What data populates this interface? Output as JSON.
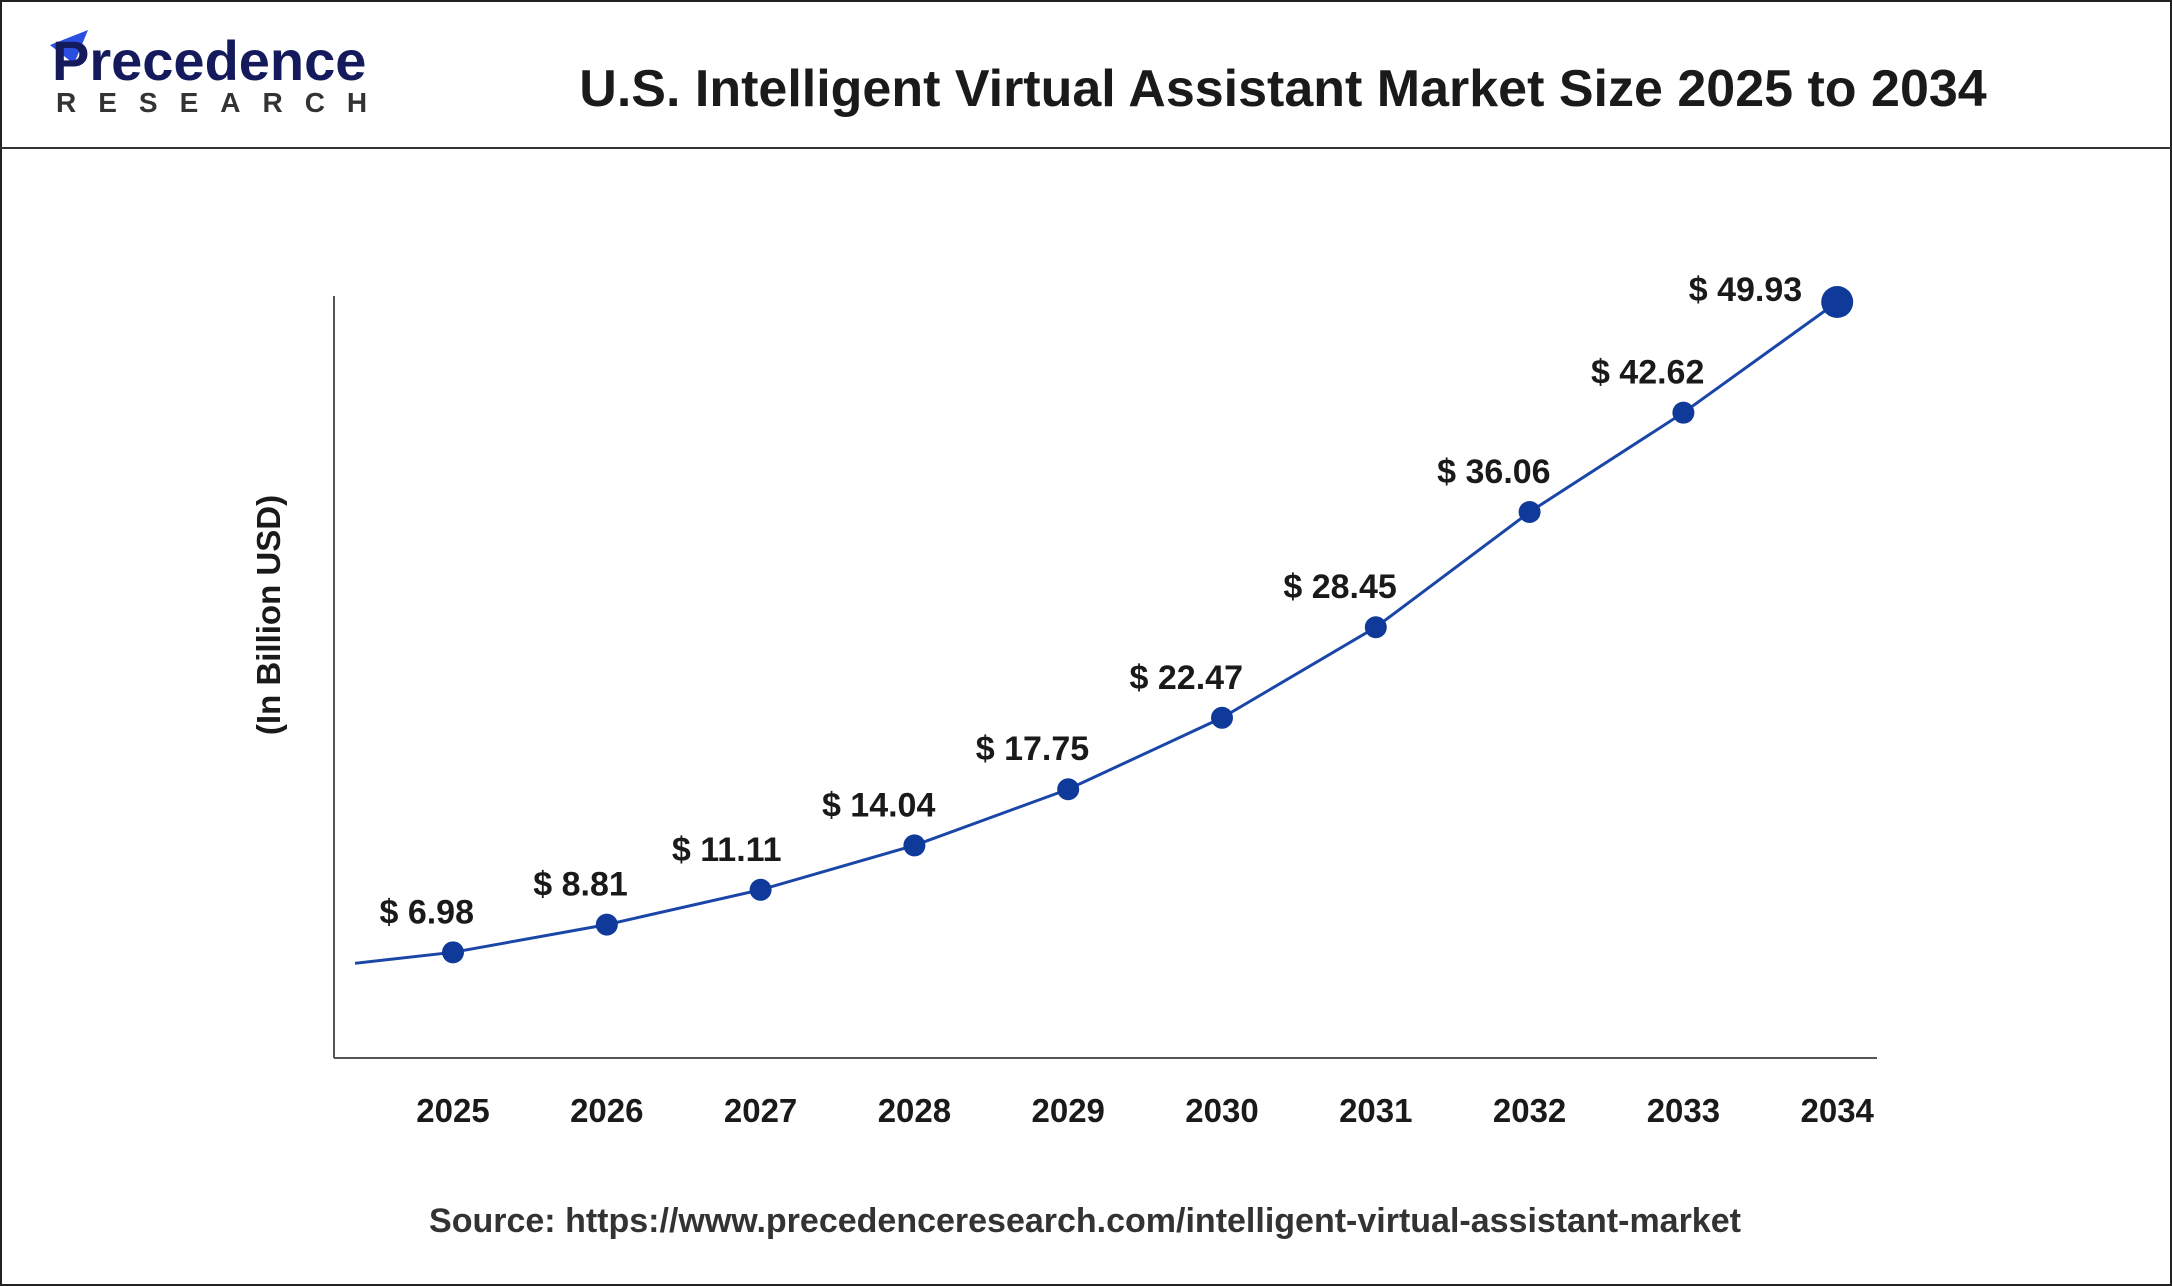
{
  "logo": {
    "name": "Precedence",
    "sub": "RESEARCH"
  },
  "header": {
    "title": "U.S. Intelligent Virtual Assistant Market Size 2025 to 2034"
  },
  "colors": {
    "line": "#1a46a8",
    "marker": "#0f3a9a",
    "text": "#1a1a1a",
    "logo_dark": "#141a5c",
    "logo_blue": "#2a4fe0"
  },
  "chart_data": {
    "type": "line",
    "title": "U.S. Intelligent Virtual Assistant Market Size 2025 to 2034",
    "xlabel": "",
    "ylabel": "(In Billion USD)",
    "categories": [
      "2025",
      "2026",
      "2027",
      "2028",
      "2029",
      "2030",
      "2031",
      "2032",
      "2033",
      "2034"
    ],
    "values": [
      6.98,
      8.81,
      11.11,
      14.04,
      17.75,
      22.47,
      28.45,
      36.06,
      42.62,
      49.93
    ],
    "data_labels": [
      "$ 6.98",
      "$ 8.81",
      "$ 11.11",
      "$ 14.04",
      "$ 17.75",
      "$ 22.47",
      "$ 28.45",
      "$ 36.06",
      "$ 42.62",
      "$ 49.93"
    ],
    "ylim": [
      0,
      50
    ],
    "grid": false,
    "legend": "none"
  },
  "source": "Source: https://www.precedenceresearch.com/intelligent-virtual-assistant-market"
}
